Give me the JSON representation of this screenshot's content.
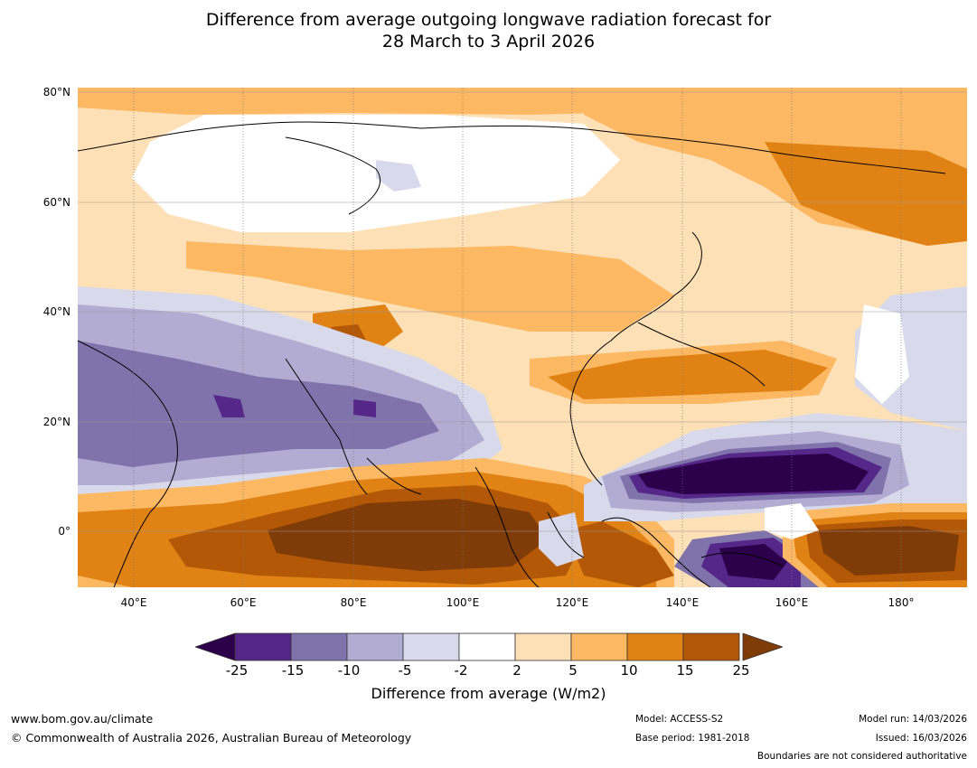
{
  "title": {
    "line1": "Difference from average outgoing longwave radiation forecast for",
    "line2": "28 March to 3 April 2026"
  },
  "map": {
    "region": "Asia, Indian Ocean and western Pacific",
    "lat_labels": [
      "80°N",
      "60°N",
      "40°N",
      "20°N",
      "0°"
    ],
    "lon_labels": [
      "40°E",
      "60°E",
      "80°E",
      "100°E",
      "120°E",
      "140°E",
      "160°E",
      "180°"
    ],
    "lat_range": [
      -10,
      81
    ],
    "lon_range": [
      30,
      192
    ]
  },
  "colorbar": {
    "ticks": [
      "-25",
      "-15",
      "-10",
      "-5",
      "-2",
      "2",
      "5",
      "10",
      "15",
      "25"
    ],
    "colors": [
      "#2d004b",
      "#542788",
      "#8073ac",
      "#b2abd2",
      "#d8daeb",
      "#ffffff",
      "#fee0b6",
      "#fdb863",
      "#e08214",
      "#b35806",
      "#7f3b08"
    ],
    "label": "Difference from average (W/m2)"
  },
  "footer": {
    "url": "www.bom.gov.au/climate",
    "copyright": "© Commonwealth of Australia 2026, Australian Bureau of Meteorology",
    "model": "Model: ACCESS-S2",
    "base_period": "Base period: 1981-2018",
    "model_run": "Model run: 14/03/2026",
    "issued": "Issued: 16/03/2026",
    "disclaimer": "Boundaries are not considered authoritative"
  }
}
